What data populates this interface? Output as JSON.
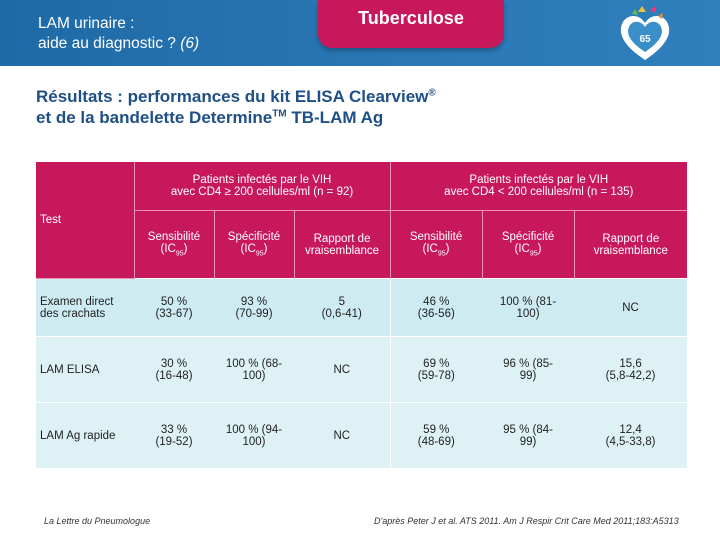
{
  "header": {
    "title_line1": "LAM urinaire :",
    "title_line2": "aide au diagnostic ?",
    "title_ref": "(6)",
    "tab_label": "Tuberculose",
    "logo_number": "65"
  },
  "heading": {
    "line1": "Résultats : performances du kit ELISA Clearview",
    "line1_sup": "®",
    "line2_a": "et de la bandelette Determine",
    "line2_sup": "TM",
    "line2_b": " TB-LAM Ag"
  },
  "table": {
    "test_label": "Test",
    "group1": {
      "line1": "Patients infectés par le VIH",
      "line2": "avec CD4 ≥ 200 cellules/ml (n = 92)"
    },
    "group2": {
      "line1": "Patients infectés par le VIH",
      "line2": "avec CD4 < 200 cellules/ml (n = 135)"
    },
    "columns": [
      {
        "line1": "Sensibilité",
        "ic": "(IC",
        "sub": "95",
        "close": ")"
      },
      {
        "line1": "Spécificité",
        "ic": "(IC",
        "sub": "95",
        "close": ")"
      },
      {
        "line1": "Rapport de",
        "line2": "vraisemblance"
      },
      {
        "line1": "Sensibilité",
        "ic": "(IC",
        "sub": "95",
        "close": ")"
      },
      {
        "line1": "Spécificité",
        "ic": "(IC",
        "sub": "95",
        "close": ")"
      },
      {
        "line1": "Rapport de",
        "line2": "vraisemblance"
      }
    ],
    "rows": [
      {
        "label_line1": "Examen direct",
        "label_line2": "des crachats",
        "cells": [
          [
            "50 %",
            "(33-67)"
          ],
          [
            "93 %",
            "(70-99)"
          ],
          [
            "5",
            "(0,6-41)"
          ],
          [
            "46 %",
            "(36-56)"
          ],
          [
            "100 % (81-",
            "100)"
          ],
          [
            "NC",
            ""
          ]
        ]
      },
      {
        "label_line1": "LAM ELISA",
        "label_line2": "",
        "cells": [
          [
            "30 %",
            "(16-48)"
          ],
          [
            "100 % (68-",
            "100)"
          ],
          [
            "NC",
            ""
          ],
          [
            "69 %",
            "(59-78)"
          ],
          [
            "96 % (85-",
            "99)"
          ],
          [
            "15,6",
            "(5,8-42,2)"
          ]
        ]
      },
      {
        "label_line1": "LAM Ag rapide",
        "label_line2": "",
        "cells": [
          [
            "33 %",
            "(19-52)"
          ],
          [
            "100 % (94-",
            "100)"
          ],
          [
            "NC",
            ""
          ],
          [
            "59 %",
            "(48-69)"
          ],
          [
            "95 % (84-",
            "99)"
          ],
          [
            "12,4",
            "(4,5-33,8)"
          ]
        ]
      }
    ]
  },
  "footer": {
    "left": "La Lettre du Pneumologue",
    "right": "D'après Peter J et al. ATS 2011. Am J Respir Crit Care Med 2011;183:A5313"
  }
}
